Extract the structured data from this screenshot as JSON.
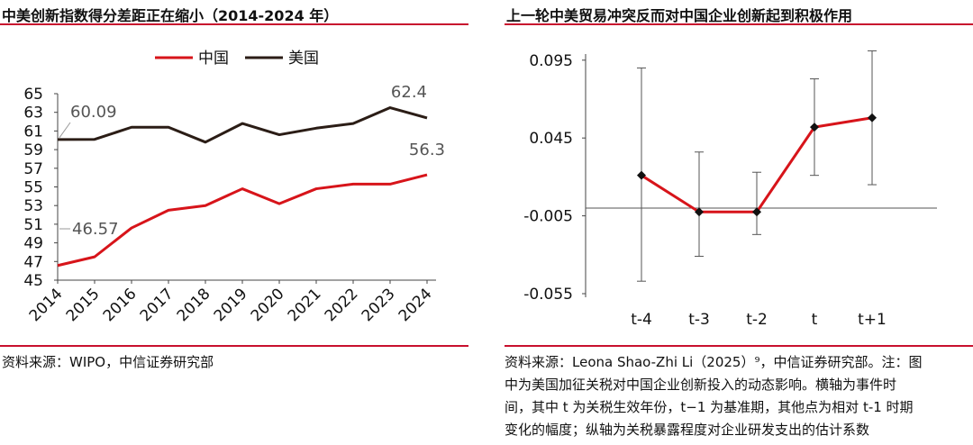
{
  "left": {
    "title": "中美创新指数得分差距正在缩小（2014-2024 年）",
    "source": "资料来源：WIPO，中信证券研究部"
  },
  "right": {
    "title": "上一轮中美贸易冲突反而对中国企业创新起到积极作用",
    "source_lines": [
      "资料来源：Leona Shao-Zhi Li（2025）⁹，中信证券研究部。注：图",
      "中为美国加征关税对中国企业创新投入的动态影响。横轴为事件时",
      "间，其中 t 为关税生效年份，t−1 为基准期，其他点为相对 t-1 时期",
      "变化的幅度；纵轴为关税暴露程度对企业研发支出的估计系数"
    ]
  },
  "colors": {
    "china": "#d7141a",
    "us": "#2b1d16",
    "accent": "#c8102e"
  },
  "chart_data": [
    {
      "type": "line",
      "title": "中美创新指数得分差距正在缩小（2014-2024 年）",
      "x": [
        "2014",
        "2015",
        "2016",
        "2017",
        "2018",
        "2019",
        "2020",
        "2021",
        "2022",
        "2023",
        "2024"
      ],
      "series": [
        {
          "name": "中国",
          "values": [
            46.57,
            47.5,
            50.6,
            52.5,
            53.0,
            54.8,
            53.2,
            54.8,
            55.3,
            55.3,
            56.3
          ]
        },
        {
          "name": "美国",
          "values": [
            60.09,
            60.1,
            61.4,
            61.4,
            59.8,
            61.8,
            60.6,
            61.3,
            61.8,
            63.5,
            62.4
          ]
        }
      ],
      "yticks": [
        "65",
        "63",
        "61",
        "59",
        "57",
        "55",
        "53",
        "51",
        "49",
        "47",
        "45"
      ],
      "ylim": [
        45,
        65
      ],
      "annotations": [
        "60.09",
        "46.57",
        "62.4",
        "56.3"
      ],
      "legend": "top-center"
    },
    {
      "type": "line",
      "title": "上一轮中美贸易冲突反而对中国企业创新起到积极作用",
      "categories": [
        "t-4",
        "t-3",
        "t-2",
        "t",
        "t+1"
      ],
      "values": [
        0.021,
        -0.0025,
        -0.0025,
        0.052,
        0.058
      ],
      "ci_low": [
        -0.047,
        -0.031,
        -0.017,
        0.021,
        0.015
      ],
      "ci_high": [
        0.09,
        0.036,
        0.023,
        0.083,
        0.101
      ],
      "yticks": [
        "0.095",
        "0.045",
        "-0.005",
        "-0.055"
      ],
      "ylim": [
        -0.055,
        0.095
      ]
    }
  ]
}
